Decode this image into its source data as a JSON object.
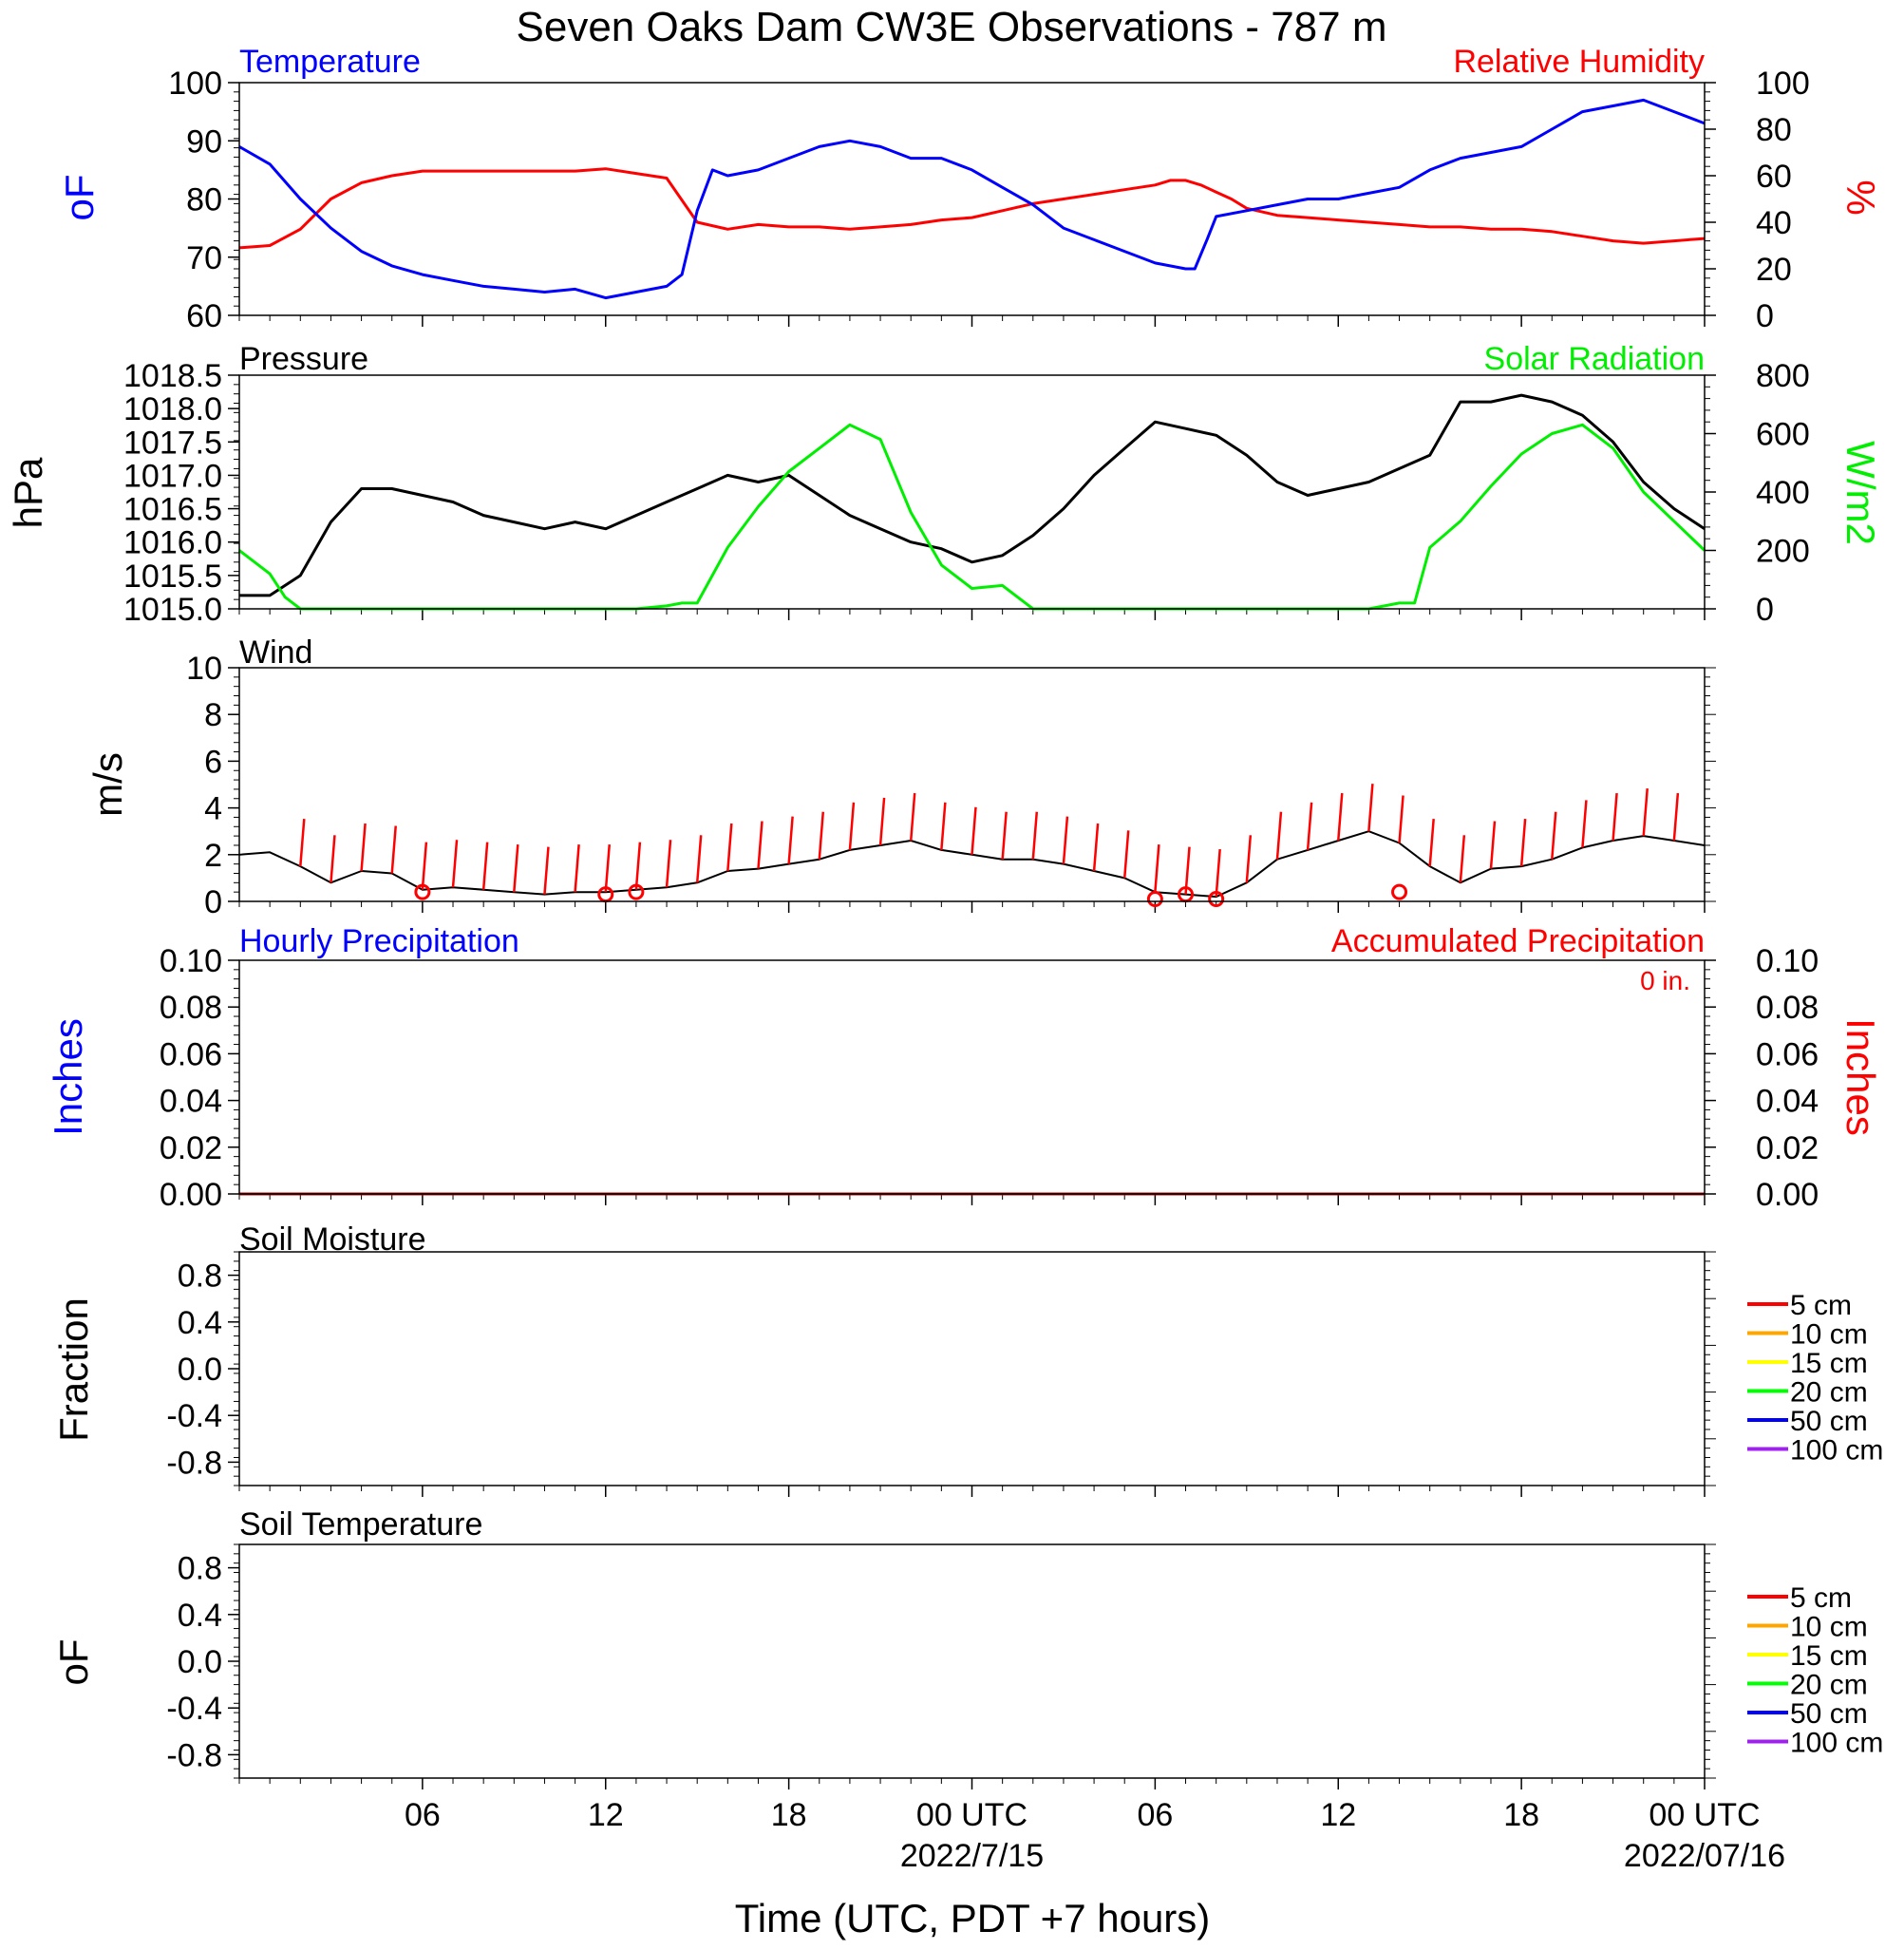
{
  "title": "Seven Oaks Dam CW3E Observations - 787 m",
  "time_axis": {
    "xlabel": "Time (UTC, PDT +7 hours)",
    "range_hours": [
      0,
      48
    ],
    "tick_labels": [
      {
        "hour": 6,
        "label": "06"
      },
      {
        "hour": 12,
        "label": "12"
      },
      {
        "hour": 18,
        "label": "18"
      },
      {
        "hour": 24,
        "label": "00 UTC"
      },
      {
        "hour": 30,
        "label": "06"
      },
      {
        "hour": 36,
        "label": "12"
      },
      {
        "hour": 42,
        "label": "18"
      },
      {
        "hour": 48,
        "label": "00 UTC"
      }
    ],
    "date_labels": [
      {
        "hour": 24,
        "label": "2022/7/15"
      },
      {
        "hour": 48,
        "label": "2022/07/16"
      }
    ]
  },
  "colors": {
    "temperature": "#0000ff",
    "humidity": "#ff0000",
    "pressure": "#000000",
    "solar": "#00ee00",
    "wind_speed": "#000000",
    "wind_barb": "#ff0000",
    "hourly_precip": "#0000ff",
    "accum_precip": "#cc0000",
    "soil_5": "#ff0000",
    "soil_10": "#ffa500",
    "soil_15": "#ffff00",
    "soil_20": "#00ff00",
    "soil_50": "#0000ff",
    "soil_100": "#a020f0"
  },
  "panels": {
    "temp_rh": {
      "left_title": "Temperature",
      "right_title": "Relative Humidity",
      "left_ylabel": "oF",
      "right_ylabel": "%",
      "left_range": [
        60,
        100
      ],
      "left_ticks": [
        "60",
        "70",
        "80",
        "90",
        "100"
      ],
      "right_range": [
        0,
        100
      ],
      "right_ticks": [
        "0",
        "20",
        "40",
        "60",
        "80",
        "100"
      ]
    },
    "pressure_solar": {
      "left_title": "Pressure",
      "right_title": "Solar Radiation",
      "left_ylabel": "hPa",
      "right_ylabel": "W/m2",
      "left_range": [
        1015.0,
        1018.5
      ],
      "left_ticks": [
        "1015.0",
        "1015.5",
        "1016.0",
        "1016.5",
        "1017.0",
        "1017.5",
        "1018.0",
        "1018.5"
      ],
      "right_range": [
        0,
        800
      ],
      "right_ticks": [
        "0",
        "200",
        "400",
        "600",
        "800"
      ]
    },
    "wind": {
      "left_title": "Wind",
      "left_ylabel": "m/s",
      "left_range": [
        0,
        10
      ],
      "left_ticks": [
        "0",
        "2",
        "4",
        "6",
        "8",
        "10"
      ]
    },
    "precip": {
      "left_title": "Hourly Precipitation",
      "right_title": "Accumulated Precipitation",
      "total_label": "0 in.",
      "left_ylabel": "Inches",
      "right_ylabel": "Inches",
      "left_range": [
        0,
        0.1
      ],
      "left_ticks": [
        "0.00",
        "0.02",
        "0.04",
        "0.06",
        "0.08",
        "0.10"
      ],
      "right_ticks": [
        "0.00",
        "0.02",
        "0.04",
        "0.06",
        "0.08",
        "0.10"
      ]
    },
    "soil_moisture": {
      "left_title": "Soil Moisture",
      "left_ylabel": "Fraction",
      "left_range": [
        -1,
        1
      ],
      "left_ticks": [
        "-0.8",
        "-0.4",
        "0.0",
        "0.4",
        "0.8"
      ]
    },
    "soil_temp": {
      "left_title": "Soil Temperature",
      "left_ylabel": "oF",
      "left_range": [
        -1,
        1
      ],
      "left_ticks": [
        "-0.8",
        "-0.4",
        "0.0",
        "0.4",
        "0.8"
      ]
    }
  },
  "soil_legend": [
    "5 cm",
    "10 cm",
    "15 cm",
    "20 cm",
    "50 cm",
    "100 cm"
  ],
  "chart_data": [
    {
      "type": "line",
      "title": "Temperature",
      "ylabel": "oF",
      "ylim": [
        60,
        100
      ],
      "x_hours": [
        0,
        1,
        2,
        3,
        4,
        5,
        6,
        7,
        8,
        9,
        10,
        11,
        12,
        13,
        14,
        14.5,
        15,
        15.5,
        16,
        17,
        18,
        19,
        20,
        21,
        22,
        23,
        24,
        25,
        26,
        27,
        28,
        29,
        30,
        31,
        31.3,
        31.7,
        32,
        33,
        34,
        35,
        36,
        37,
        38,
        39,
        40,
        41,
        42,
        43,
        44,
        45,
        46,
        47,
        48
      ],
      "values": [
        89,
        86,
        80,
        75,
        71,
        68.5,
        67,
        66,
        65,
        64.5,
        64,
        64.5,
        63,
        64,
        65,
        67,
        78,
        85,
        84,
        85,
        87,
        89,
        90,
        89,
        87,
        87,
        85,
        82,
        79,
        75,
        73,
        71,
        69,
        68,
        68,
        73,
        77,
        78,
        79,
        80,
        80,
        81,
        82,
        85,
        87,
        88,
        89,
        92,
        95,
        96,
        97,
        95,
        93
      ]
    },
    {
      "type": "line",
      "title": "Relative Humidity",
      "ylabel": "%",
      "ylim": [
        0,
        100
      ],
      "x_hours": [
        0,
        1,
        2,
        3,
        4,
        5,
        6,
        7,
        8,
        9,
        10,
        11,
        12,
        13,
        14,
        15,
        16,
        17,
        18,
        19,
        20,
        21,
        22,
        23,
        24,
        25,
        26,
        27,
        28,
        29,
        30,
        30.5,
        31,
        31.5,
        32,
        32.5,
        33,
        34,
        35,
        36,
        37,
        38,
        39,
        40,
        41,
        42,
        43,
        44,
        45,
        46,
        47,
        48
      ],
      "values": [
        29,
        30,
        37,
        50,
        57,
        60,
        62,
        62,
        62,
        62,
        62,
        62,
        63,
        61,
        59,
        40,
        37,
        39,
        38,
        38,
        37,
        38,
        39,
        41,
        42,
        45,
        48,
        50,
        52,
        54,
        56,
        58,
        58,
        56,
        53,
        50,
        46,
        43,
        42,
        41,
        40,
        39,
        38,
        38,
        37,
        37,
        36,
        34,
        32,
        31,
        32,
        33
      ]
    },
    {
      "type": "line",
      "title": "Pressure",
      "ylabel": "hPa",
      "ylim": [
        1015.0,
        1018.5
      ],
      "x_hours": [
        0,
        1,
        2,
        3,
        4,
        5,
        6,
        7,
        8,
        9,
        10,
        11,
        12,
        13,
        14,
        15,
        16,
        17,
        18,
        19,
        20,
        21,
        22,
        23,
        24,
        25,
        26,
        27,
        28,
        29,
        30,
        31,
        32,
        33,
        34,
        35,
        36,
        37,
        38,
        39,
        40,
        41,
        42,
        43,
        44,
        45,
        46,
        47,
        48
      ],
      "values": [
        1015.2,
        1015.2,
        1015.5,
        1016.3,
        1016.8,
        1016.8,
        1016.7,
        1016.6,
        1016.4,
        1016.3,
        1016.2,
        1016.3,
        1016.2,
        1016.4,
        1016.6,
        1016.8,
        1017.0,
        1016.9,
        1017.0,
        1016.7,
        1016.4,
        1016.2,
        1016.0,
        1015.9,
        1015.7,
        1015.8,
        1016.1,
        1016.5,
        1017.0,
        1017.4,
        1017.8,
        1017.7,
        1017.6,
        1017.3,
        1016.9,
        1016.7,
        1016.8,
        1016.9,
        1017.1,
        1017.3,
        1018.1,
        1018.1,
        1018.2,
        1018.1,
        1017.9,
        1017.5,
        1016.9,
        1016.5,
        1016.2
      ]
    },
    {
      "type": "line",
      "title": "Solar Radiation",
      "ylabel": "W/m2",
      "ylim": [
        0,
        800
      ],
      "x_hours": [
        0,
        1,
        1.5,
        2,
        3,
        4,
        5,
        6,
        7,
        8,
        9,
        10,
        11,
        12,
        13,
        14,
        14.5,
        15,
        16,
        17,
        18,
        19,
        20,
        21,
        22,
        23,
        24,
        25,
        26,
        27,
        28,
        29,
        30,
        31,
        32,
        33,
        34,
        35,
        36,
        37,
        38,
        38.5,
        39,
        40,
        41,
        42,
        43,
        44,
        45,
        46,
        47,
        48
      ],
      "values": [
        200,
        120,
        40,
        0,
        0,
        0,
        0,
        0,
        0,
        0,
        0,
        0,
        0,
        0,
        0,
        10,
        20,
        20,
        210,
        350,
        470,
        550,
        630,
        580,
        330,
        150,
        70,
        80,
        0,
        0,
        0,
        0,
        0,
        0,
        0,
        0,
        0,
        0,
        0,
        0,
        20,
        20,
        210,
        300,
        420,
        530,
        600,
        630,
        550,
        400,
        300,
        200
      ]
    },
    {
      "type": "line",
      "title": "Wind",
      "ylabel": "m/s",
      "ylim": [
        0,
        10
      ],
      "x_hours": [
        0,
        1,
        2,
        3,
        4,
        5,
        6,
        7,
        8,
        9,
        10,
        11,
        12,
        13,
        14,
        15,
        16,
        17,
        18,
        19,
        20,
        21,
        22,
        23,
        24,
        25,
        26,
        27,
        28,
        29,
        30,
        31,
        32,
        33,
        34,
        35,
        36,
        37,
        38,
        39,
        40,
        41,
        42,
        43,
        44,
        45,
        46,
        47,
        48
      ],
      "values": [
        2.0,
        2.1,
        1.5,
        0.8,
        1.3,
        1.2,
        0.5,
        0.6,
        0.5,
        0.4,
        0.3,
        0.4,
        0.4,
        0.5,
        0.6,
        0.8,
        1.3,
        1.4,
        1.6,
        1.8,
        2.2,
        2.4,
        2.6,
        2.2,
        2.0,
        1.8,
        1.8,
        1.6,
        1.3,
        1.0,
        0.4,
        0.3,
        0.2,
        0.8,
        1.8,
        2.2,
        2.6,
        3.0,
        2.5,
        1.5,
        0.8,
        1.4,
        1.5,
        1.8,
        2.3,
        2.6,
        2.8,
        2.6,
        2.4
      ]
    },
    {
      "type": "scatter",
      "title": "Wind calm markers",
      "x_hours": [
        6,
        12,
        13,
        30,
        31,
        32,
        38
      ],
      "values": [
        0.4,
        0.3,
        0.4,
        0.1,
        0.3,
        0.1,
        0.4
      ]
    },
    {
      "type": "line",
      "title": "Hourly Precipitation",
      "ylabel": "Inches",
      "ylim": [
        0,
        0.1
      ],
      "x_hours": [
        0,
        48
      ],
      "values": [
        0,
        0
      ]
    },
    {
      "type": "line",
      "title": "Accumulated Precipitation",
      "ylabel": "Inches",
      "ylim": [
        0,
        0.1
      ],
      "x_hours": [
        0,
        48
      ],
      "values": [
        0,
        0
      ]
    }
  ]
}
